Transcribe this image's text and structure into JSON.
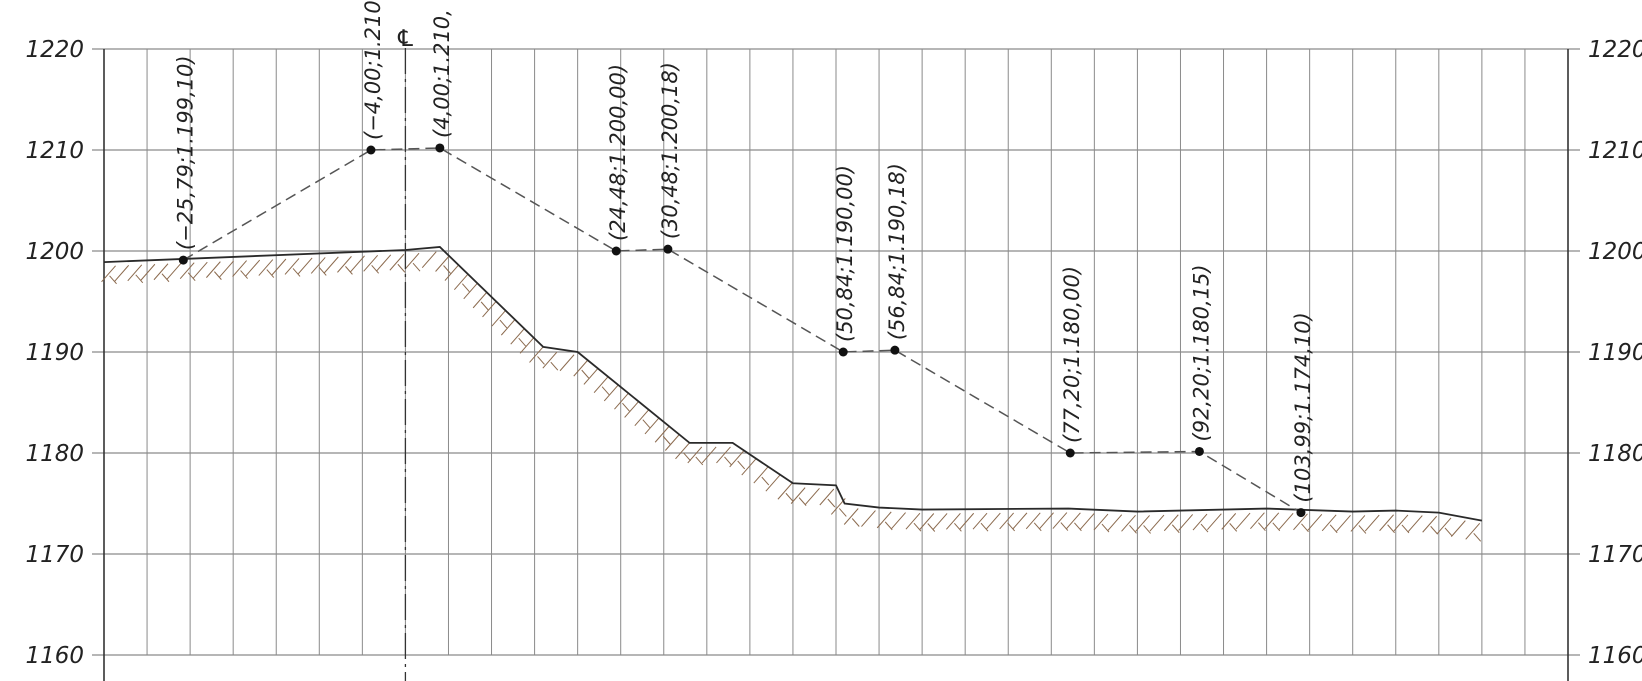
{
  "chart_data": {
    "type": "line",
    "title": "",
    "xlabel": "",
    "ylabel": "",
    "ylim": [
      1160,
      1220
    ],
    "xlim": [
      -35,
      135
    ],
    "grid": true,
    "y_ticks": [
      "1220",
      "1210",
      "1200",
      "1190",
      "1180",
      "1170",
      "1160"
    ],
    "y_tick_values": [
      1220,
      1210,
      1200,
      1190,
      1180,
      1170,
      1160
    ],
    "centerline": {
      "symbol": "℄",
      "x": 0
    },
    "colors": {
      "grid": "#8a8a8a",
      "ground": "#2a2a2a",
      "hatch": "#8b6a4e",
      "design": "#555555",
      "points": "#111111"
    },
    "series": [
      {
        "x": [
          -35,
          0,
          4,
          16,
          20,
          33,
          38,
          45,
          50,
          51,
          55,
          60,
          77,
          85,
          100,
          110,
          115,
          120,
          125
        ],
        "y": [
          1198.9,
          1200.1,
          1200.4,
          1190.5,
          1190.0,
          1181.0,
          1181.0,
          1177.0,
          1176.8,
          1175.0,
          1174.6,
          1174.4,
          1174.5,
          1174.2,
          1174.5,
          1174.2,
          1174.3,
          1174.1,
          1173.3
        ]
      },
      {
        "x": [
          -25.79,
          -4.0,
          4.0,
          24.48,
          30.48,
          50.84,
          56.84,
          77.2,
          92.2,
          103.99
        ],
        "y": [
          1199.1,
          1210.0,
          1210.2,
          1200.0,
          1200.18,
          1190.0,
          1190.18,
          1180.0,
          1180.15,
          1174.1
        ]
      }
    ],
    "points": [
      {
        "x": -25.79,
        "y": 1199.1,
        "label": "(−25,79;1.199,10)"
      },
      {
        "x": -4.0,
        "y": 1210.0,
        "label": "(−4,00;1.210"
      },
      {
        "x": 4.0,
        "y": 1210.2,
        "label": "(4,00;1.210,"
      },
      {
        "x": 24.48,
        "y": 1200.0,
        "label": "(24,48;1.200,00)"
      },
      {
        "x": 30.48,
        "y": 1200.18,
        "label": "(30,48;1.200,18)"
      },
      {
        "x": 50.84,
        "y": 1190.0,
        "label": "(50,84;1.190,00)"
      },
      {
        "x": 56.84,
        "y": 1190.18,
        "label": "(56,84;1.190,18)"
      },
      {
        "x": 77.2,
        "y": 1180.0,
        "label": "(77,20;1.180,00)"
      },
      {
        "x": 92.2,
        "y": 1180.15,
        "label": "(92,20;1.180,15)"
      },
      {
        "x": 103.99,
        "y": 1174.1,
        "label": "(103,99;1.174,10)"
      }
    ]
  }
}
